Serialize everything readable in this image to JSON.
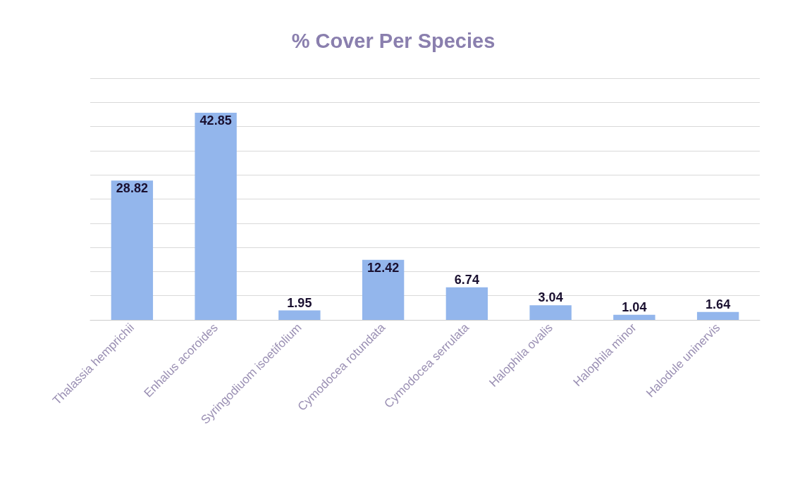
{
  "chart_data": {
    "type": "bar",
    "title": "% Cover Per Species",
    "categories": [
      "Thalassia hemprichii",
      "Enhalus acoroides",
      "Syringodiuom isoetifolium",
      "Cymodocea rotundata",
      "Cymodocea serrulata",
      "Halophila ovalis",
      "Halophila minor",
      "Halodule uninervis"
    ],
    "values": [
      28.82,
      42.85,
      1.95,
      12.42,
      6.74,
      3.04,
      1.04,
      1.64
    ],
    "color": "#93b6ec",
    "ylim": [
      0,
      50
    ],
    "yticks": [
      {
        "value": 0,
        "label": null
      },
      {
        "value": 5,
        "label": null
      },
      {
        "value": 10,
        "label": null
      },
      {
        "value": 15,
        "label": null
      },
      {
        "value": 20,
        "label": null
      },
      {
        "value": 25,
        "label": null
      },
      {
        "value": 30,
        "label": null
      },
      {
        "value": 35,
        "label": null
      },
      {
        "value": 40,
        "label": null
      },
      {
        "value": 45,
        "label": null
      },
      {
        "value": 50,
        "label": null
      }
    ],
    "tick_labels": "x",
    "grid": "y",
    "data_labels": true
  }
}
